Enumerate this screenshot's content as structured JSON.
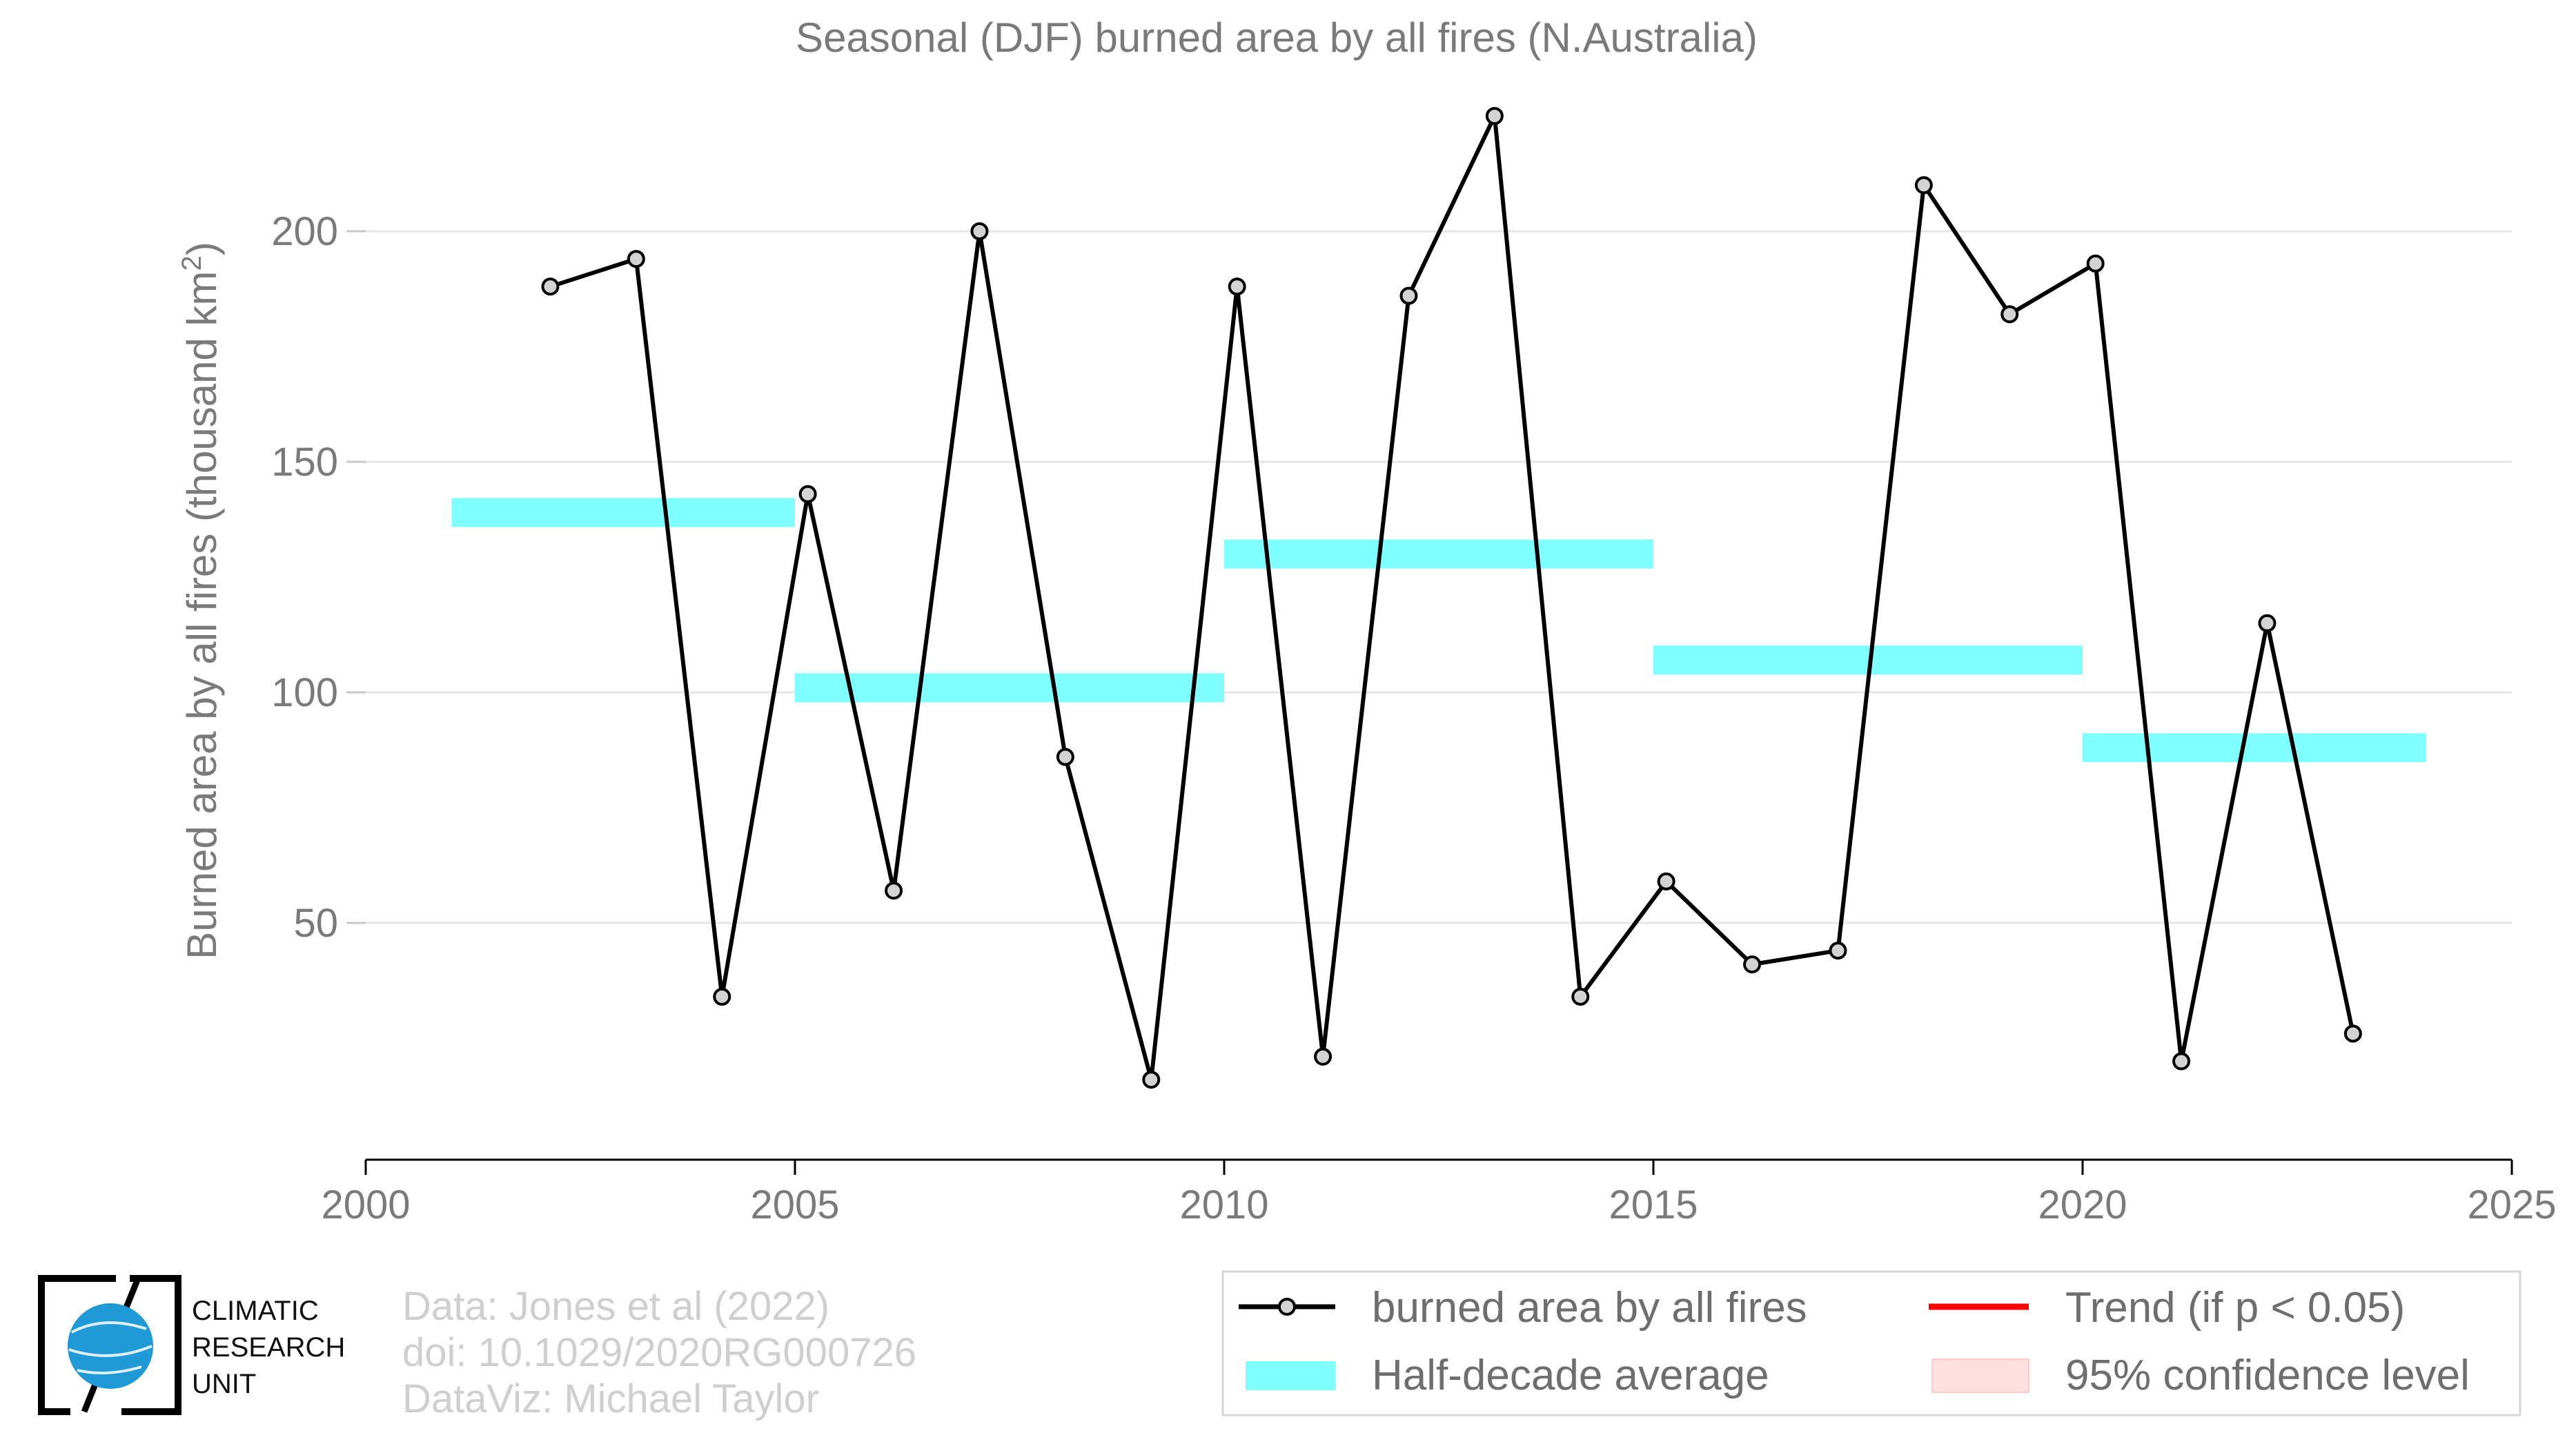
{
  "chart_data": {
    "type": "line",
    "title": "Seasonal (DJF) burned area by all fires (N.Australia)",
    "ylabel_main": "Burned area by all fires (thousand km",
    "ylabel_sup": "2",
    "ylabel_close": ")",
    "xlim": [
      2000,
      2025
    ],
    "ylim": [
      0,
      225
    ],
    "y_axis_start": 0,
    "grid": true,
    "x_ticks": [
      "2000",
      "2005",
      "2010",
      "2015",
      "2020",
      "2025"
    ],
    "y_ticks": [
      "50",
      "100",
      "150",
      "200"
    ],
    "x_tick_values": [
      2000,
      2005,
      2010,
      2015,
      2020,
      2025
    ],
    "y_tick_values": [
      50,
      100,
      150,
      200
    ],
    "series": [
      {
        "name": "burned area by all fires",
        "color": "#000000",
        "marker_fill": "#d3d3d3",
        "x": [
          2002.15,
          2003.15,
          2004.15,
          2005.15,
          2006.15,
          2007.15,
          2008.15,
          2009.15,
          2010.15,
          2011.15,
          2012.15,
          2013.15,
          2014.15,
          2015.15,
          2016.15,
          2017.15,
          2018.15,
          2019.15,
          2020.15,
          2021.15,
          2022.15,
          2023.15
        ],
        "y": [
          188,
          194,
          34,
          143,
          57,
          200,
          86,
          16,
          188,
          21,
          186,
          225,
          34,
          59,
          41,
          44,
          210,
          182,
          193,
          20,
          115,
          26
        ]
      }
    ],
    "half_decade_average": {
      "name": "Half-decade average",
      "color": "#7fffff",
      "segments": [
        {
          "x_start": 2001,
          "x_end": 2005,
          "value": 139
        },
        {
          "x_start": 2005,
          "x_end": 2010,
          "value": 101
        },
        {
          "x_start": 2010,
          "x_end": 2015,
          "value": 130
        },
        {
          "x_start": 2015,
          "x_end": 2020,
          "value": 107
        },
        {
          "x_start": 2020,
          "x_end": 2024,
          "value": 88
        }
      ]
    },
    "legend": {
      "placement": "bottom-right",
      "entries": [
        {
          "label": "burned area by all fires",
          "kind": "line-marker",
          "color": "#000000"
        },
        {
          "label": "Trend (if p < 0.05)",
          "kind": "line",
          "color": "#ff0000"
        },
        {
          "label": "Half-decade average",
          "kind": "band",
          "color": "#7fffff"
        },
        {
          "label": "95% confidence level",
          "kind": "patch",
          "color": "#ffe0e0"
        }
      ]
    }
  },
  "credits": {
    "line1": "Data: Jones et al (2022)",
    "line2": "doi: 10.1029/2020RG000726",
    "line3": "DataViz: Michael Taylor"
  },
  "logo": {
    "line1": "CLIMATIC",
    "line2": "RESEARCH",
    "line3": "UNIT",
    "globe_color": "#1f9ad6"
  }
}
